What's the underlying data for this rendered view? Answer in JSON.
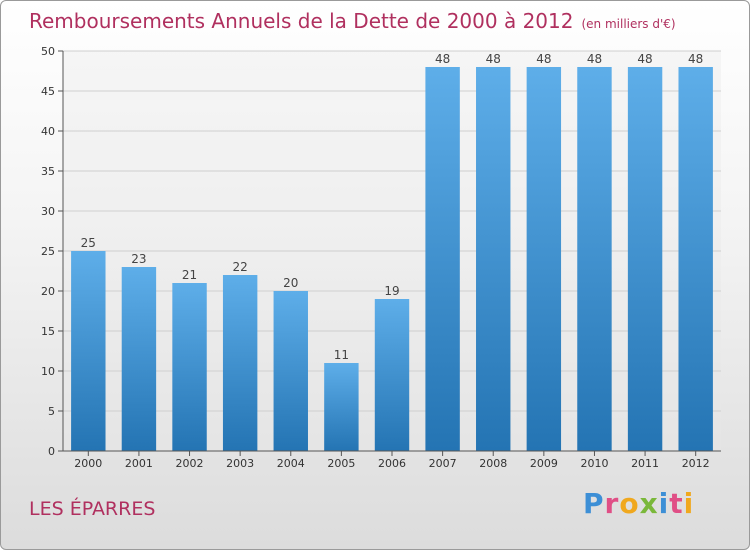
{
  "chart_data": {
    "type": "bar",
    "title": "Remboursements Annuels de la Dette de 2000 à 2012",
    "subtitle": "(en milliers d'€)",
    "categories": [
      "2000",
      "2001",
      "2002",
      "2003",
      "2004",
      "2005",
      "2006",
      "2007",
      "2008",
      "2009",
      "2010",
      "2011",
      "2012"
    ],
    "values": [
      25,
      23,
      21,
      22,
      20,
      11,
      19,
      48,
      48,
      48,
      48,
      48,
      48
    ],
    "ylim": [
      0,
      50
    ],
    "yticks": [
      0,
      5,
      10,
      15,
      20,
      25,
      30,
      35,
      40,
      45,
      50
    ],
    "xlabel": "",
    "ylabel": "",
    "grid": true,
    "bar_color_top": "#5eaee9",
    "bar_color_bottom": "#2474b3"
  },
  "footer": {
    "place": "LES ÉPARRES",
    "logo": "Proxiti"
  },
  "colors": {
    "accent": "#b0305f"
  }
}
